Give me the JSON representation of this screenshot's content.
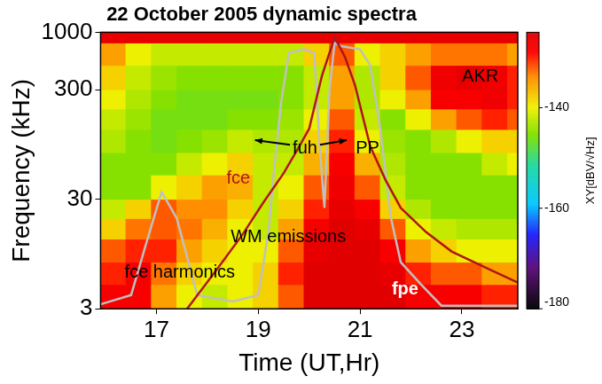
{
  "chart_data": {
    "type": "spectrogram",
    "title": "22 October 2005 dynamic spectra",
    "x_label": "Time (UT,Hr)",
    "y_label": "Frequency (kHz)",
    "xlim": [
      15.9,
      24.1
    ],
    "xticks": [
      17,
      19,
      21,
      23
    ],
    "ylim": [
      3,
      1000
    ],
    "yticks": [
      3,
      30,
      300,
      1000
    ],
    "log": "y",
    "grid": false,
    "cells": {
      "time_edges": [
        15.9,
        16.4,
        16.9,
        17.4,
        17.9,
        18.4,
        18.9,
        19.4,
        19.9,
        20.4,
        20.9,
        21.4,
        21.9,
        22.4,
        22.9,
        23.4,
        23.9,
        24.1
      ],
      "freq_edges": [
        3,
        5,
        8,
        13,
        20,
        30,
        50,
        80,
        130,
        200,
        300,
        500,
        800,
        1000
      ],
      "values": [
        [
          -128,
          -128,
          -135,
          -140,
          -142,
          -140,
          -138,
          -132,
          -125,
          -125,
          -125,
          -125,
          -128,
          -128,
          -128,
          -130,
          -130
        ],
        [
          -130,
          -128,
          -133,
          -138,
          -140,
          -140,
          -138,
          -130,
          -125,
          -125,
          -125,
          -126,
          -130,
          -132,
          -132,
          -135,
          -135
        ],
        [
          -132,
          -130,
          -130,
          -135,
          -138,
          -140,
          -140,
          -132,
          -126,
          -125,
          -125,
          -128,
          -135,
          -138,
          -140,
          -140,
          -140
        ],
        [
          -138,
          -133,
          -132,
          -133,
          -136,
          -140,
          -142,
          -135,
          -128,
          -125,
          -126,
          -132,
          -140,
          -142,
          -143,
          -143,
          -143
        ],
        [
          -142,
          -138,
          -132,
          -134,
          -134,
          -138,
          -142,
          -138,
          -130,
          -126,
          -128,
          -138,
          -143,
          -145,
          -145,
          -145,
          -145
        ],
        [
          -145,
          -145,
          -140,
          -138,
          -135,
          -136,
          -142,
          -140,
          -132,
          -127,
          -132,
          -142,
          -145,
          -145,
          -145,
          -145,
          -145
        ],
        [
          -145,
          -145,
          -145,
          -142,
          -140,
          -138,
          -142,
          -142,
          -136,
          -128,
          -136,
          -143,
          -145,
          -145,
          -145,
          -142,
          -140
        ],
        [
          -143,
          -145,
          -146,
          -145,
          -144,
          -142,
          -143,
          -143,
          -138,
          -130,
          -140,
          -144,
          -145,
          -143,
          -140,
          -138,
          -138
        ],
        [
          -142,
          -144,
          -146,
          -146,
          -146,
          -145,
          -145,
          -144,
          -140,
          -132,
          -142,
          -145,
          -140,
          -135,
          -132,
          -130,
          -132
        ],
        [
          -140,
          -143,
          -145,
          -146,
          -146,
          -146,
          -146,
          -145,
          -142,
          -135,
          -143,
          -140,
          -135,
          -128,
          -128,
          -127,
          -130
        ],
        [
          -138,
          -142,
          -144,
          -145,
          -145,
          -145,
          -145,
          -145,
          -142,
          -135,
          -143,
          -138,
          -132,
          -127,
          -126,
          -127,
          -130
        ],
        [
          -135,
          -140,
          -142,
          -142,
          -142,
          -142,
          -142,
          -142,
          -138,
          -132,
          -140,
          -138,
          -135,
          -133,
          -133,
          -133,
          -135
        ],
        [
          -126,
          -126,
          -126,
          -126,
          -126,
          -126,
          -126,
          -126,
          -126,
          -126,
          -126,
          -126,
          -126,
          -126,
          -126,
          -126,
          -126
        ]
      ]
    },
    "colorbar": {
      "label": "XY[dBV/√Hz]",
      "range": [
        -180,
        -125
      ],
      "ticks": [
        -180,
        -160,
        -140
      ]
    },
    "series": [
      {
        "name": "fce",
        "color": "#b0151c",
        "line_style": "solid",
        "x": [
          17.6,
          18.2,
          18.7,
          19.1,
          19.5,
          19.8,
          20.0,
          20.25,
          20.5,
          20.7,
          20.9,
          21.2,
          21.5,
          21.8,
          22.3,
          22.8,
          23.5,
          24.1
        ],
        "values": [
          3,
          7,
          14.5,
          28,
          52,
          90,
          132,
          400,
          900,
          600,
          330,
          91,
          45,
          25,
          15,
          10,
          7,
          5.2
        ]
      },
      {
        "name": "fpe",
        "color": "#c0c0c0",
        "line_style": "solid",
        "x": [
          15.9,
          16.5,
          16.8,
          17.1,
          17.4,
          17.8,
          18.5,
          19.0,
          19.2,
          19.3,
          19.45,
          19.6,
          19.9,
          20.1,
          20.2,
          20.3,
          20.4,
          20.5,
          20.6,
          21.0,
          21.2,
          21.4,
          21.6,
          21.8,
          22.2,
          22.6,
          23.5,
          24.1
        ],
        "values": [
          3.3,
          4,
          12,
          35,
          20,
          4,
          3.5,
          4,
          15,
          50,
          230,
          650,
          700,
          650,
          100,
          25,
          300,
          800,
          750,
          700,
          500,
          130,
          21,
          8,
          5,
          3.2,
          3.2,
          3.2
        ]
      }
    ],
    "annotations": [
      {
        "text": "AKR"
      },
      {
        "text": "fuh"
      },
      {
        "text": "PP"
      },
      {
        "text": "WM emissions"
      },
      {
        "text": "fce harmonics"
      }
    ]
  }
}
